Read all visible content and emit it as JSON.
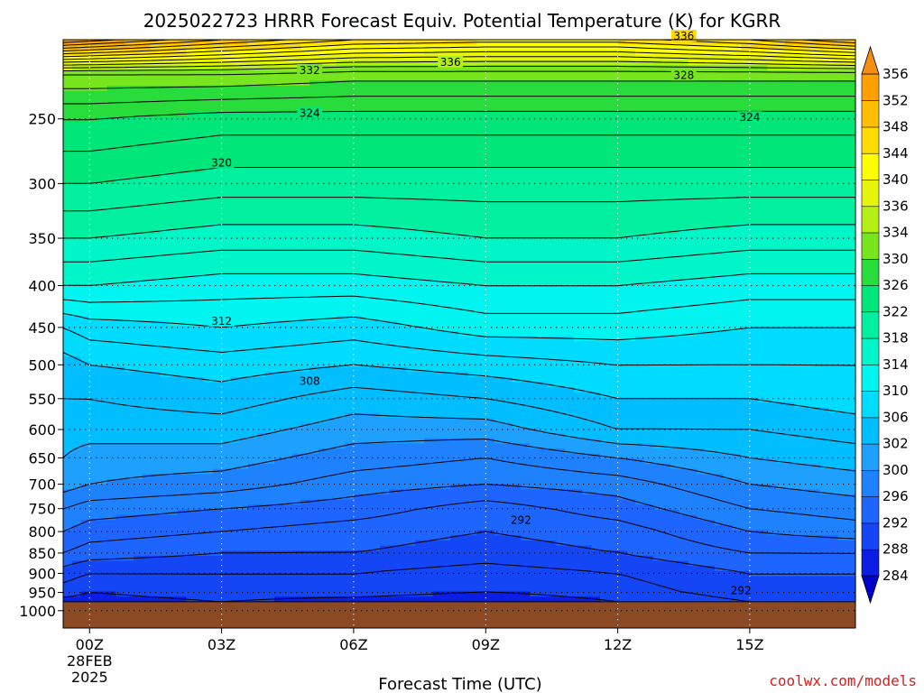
{
  "title": "2025022723 HRRR Forecast Equiv. Potential Temperature (K) for KGRR",
  "xlabel": "Forecast Time (UTC)",
  "credit": "coolwx.com/models",
  "colors": {
    "ground": "#8b4a24",
    "levels": [
      {
        "min": 282,
        "max": 284,
        "color": "#0000c8"
      },
      {
        "min": 284,
        "max": 288,
        "color": "#0a1ee6"
      },
      {
        "min": 288,
        "max": 292,
        "color": "#1446f5"
      },
      {
        "min": 292,
        "max": 296,
        "color": "#1e64ff"
      },
      {
        "min": 296,
        "max": 300,
        "color": "#1e82ff"
      },
      {
        "min": 300,
        "max": 302,
        "color": "#1ea0ff"
      },
      {
        "min": 302,
        "max": 306,
        "color": "#00beff"
      },
      {
        "min": 306,
        "max": 310,
        "color": "#00dcff"
      },
      {
        "min": 310,
        "max": 314,
        "color": "#00f5f0"
      },
      {
        "min": 314,
        "max": 318,
        "color": "#00f5c8"
      },
      {
        "min": 318,
        "max": 322,
        "color": "#00f0a0"
      },
      {
        "min": 322,
        "max": 326,
        "color": "#00e678"
      },
      {
        "min": 326,
        "max": 330,
        "color": "#28dc3c"
      },
      {
        "min": 330,
        "max": 334,
        "color": "#78e61e"
      },
      {
        "min": 334,
        "max": 336,
        "color": "#b4f014"
      },
      {
        "min": 336,
        "max": 340,
        "color": "#e6f50a"
      },
      {
        "min": 340,
        "max": 344,
        "color": "#ffff00"
      },
      {
        "min": 344,
        "max": 348,
        "color": "#ffdc00"
      },
      {
        "min": 348,
        "max": 352,
        "color": "#ffbe00"
      },
      {
        "min": 352,
        "max": 356,
        "color": "#ffa000"
      },
      {
        "min": 356,
        "max": 360,
        "color": "#f58c14"
      }
    ]
  },
  "chart_data": {
    "type": "heatmap",
    "title": "2025022723 HRRR Forecast Equiv. Potential Temperature (K) for KGRR",
    "xlabel": "Forecast Time (UTC)",
    "ylabel": "",
    "y_scale": "log",
    "ylim": [
      1000,
      200
    ],
    "y_ticks": [
      250,
      300,
      350,
      400,
      450,
      500,
      550,
      600,
      650,
      700,
      750,
      800,
      850,
      900,
      950,
      1000
    ],
    "x_ticks": [
      {
        "hour": 0,
        "label": "00Z",
        "sublabels": [
          "28FEB",
          "2025"
        ]
      },
      {
        "hour": 3,
        "label": "03Z",
        "sublabels": []
      },
      {
        "hour": 6,
        "label": "06Z",
        "sublabels": []
      },
      {
        "hour": 9,
        "label": "09Z",
        "sublabels": []
      },
      {
        "hour": 12,
        "label": "12Z",
        "sublabels": []
      },
      {
        "hour": 15,
        "label": "15Z",
        "sublabels": []
      }
    ],
    "xlim": [
      -0.6,
      17.4
    ],
    "colorbar_ticks": [
      356,
      352,
      348,
      344,
      340,
      336,
      334,
      330,
      326,
      322,
      318,
      314,
      310,
      306,
      302,
      300,
      296,
      292,
      288,
      284
    ],
    "surface_pressure_hpa": 975,
    "contour_interval_k": 2,
    "profiles": [
      {
        "hour": -0.6,
        "levels": [
          [
            975,
            287
          ],
          [
            950,
            289
          ],
          [
            900,
            291
          ],
          [
            850,
            294
          ],
          [
            800,
            296
          ],
          [
            750,
            298
          ],
          [
            700,
            301
          ],
          [
            650,
            302
          ],
          [
            600,
            303
          ],
          [
            550,
            304
          ],
          [
            500,
            305
          ],
          [
            450,
            308
          ],
          [
            400,
            314
          ],
          [
            350,
            318
          ],
          [
            300,
            322
          ],
          [
            250,
            326
          ],
          [
            220,
            332
          ],
          [
            200,
            356
          ]
        ]
      },
      {
        "hour": 0,
        "levels": [
          [
            975,
            287
          ],
          [
            950,
            288
          ],
          [
            900,
            290
          ],
          [
            850,
            293
          ],
          [
            800,
            295
          ],
          [
            750,
            297
          ],
          [
            700,
            300
          ],
          [
            650,
            301
          ],
          [
            600,
            303
          ],
          [
            550,
            304
          ],
          [
            500,
            306
          ],
          [
            450,
            309
          ],
          [
            400,
            314
          ],
          [
            350,
            318
          ],
          [
            300,
            322
          ],
          [
            250,
            326
          ],
          [
            220,
            332
          ],
          [
            200,
            355
          ]
        ]
      },
      {
        "hour": 3,
        "levels": [
          [
            975,
            288
          ],
          [
            950,
            289
          ],
          [
            900,
            290
          ],
          [
            850,
            292
          ],
          [
            800,
            294
          ],
          [
            750,
            296
          ],
          [
            700,
            299
          ],
          [
            650,
            301
          ],
          [
            600,
            303
          ],
          [
            550,
            305
          ],
          [
            500,
            307
          ],
          [
            450,
            310
          ],
          [
            400,
            313
          ],
          [
            350,
            317
          ],
          [
            300,
            321
          ],
          [
            250,
            325
          ],
          [
            220,
            332
          ],
          [
            200,
            350
          ]
        ]
      },
      {
        "hour": 6,
        "levels": [
          [
            975,
            287
          ],
          [
            950,
            289
          ],
          [
            900,
            290
          ],
          [
            850,
            292
          ],
          [
            800,
            293
          ],
          [
            750,
            295
          ],
          [
            700,
            297
          ],
          [
            650,
            299
          ],
          [
            600,
            301
          ],
          [
            550,
            303
          ],
          [
            500,
            306
          ],
          [
            450,
            309
          ],
          [
            400,
            313
          ],
          [
            350,
            317
          ],
          [
            300,
            321
          ],
          [
            250,
            325
          ],
          [
            220,
            331
          ],
          [
            200,
            346
          ]
        ]
      },
      {
        "hour": 9,
        "levels": [
          [
            975,
            286
          ],
          [
            950,
            288
          ],
          [
            900,
            289
          ],
          [
            850,
            291
          ],
          [
            800,
            292
          ],
          [
            750,
            293
          ],
          [
            700,
            296
          ],
          [
            650,
            298
          ],
          [
            600,
            301
          ],
          [
            550,
            304
          ],
          [
            500,
            307
          ],
          [
            450,
            311
          ],
          [
            400,
            314
          ],
          [
            350,
            318
          ],
          [
            300,
            321
          ],
          [
            250,
            325
          ],
          [
            220,
            331
          ],
          [
            200,
            345
          ]
        ]
      },
      {
        "hour": 12,
        "levels": [
          [
            975,
            288
          ],
          [
            950,
            289
          ],
          [
            900,
            290
          ],
          [
            850,
            292
          ],
          [
            800,
            293
          ],
          [
            750,
            295
          ],
          [
            700,
            297
          ],
          [
            650,
            300
          ],
          [
            600,
            304
          ],
          [
            550,
            306
          ],
          [
            500,
            308
          ],
          [
            450,
            311
          ],
          [
            400,
            314
          ],
          [
            350,
            318
          ],
          [
            300,
            321
          ],
          [
            250,
            325
          ],
          [
            220,
            331
          ],
          [
            200,
            345
          ]
        ]
      },
      {
        "hour": 15,
        "levels": [
          [
            975,
            290
          ],
          [
            950,
            291
          ],
          [
            900,
            292
          ],
          [
            850,
            294
          ],
          [
            800,
            296
          ],
          [
            750,
            298
          ],
          [
            700,
            300
          ],
          [
            650,
            302
          ],
          [
            600,
            304
          ],
          [
            550,
            306
          ],
          [
            500,
            308
          ],
          [
            450,
            310
          ],
          [
            400,
            313
          ],
          [
            350,
            317
          ],
          [
            300,
            321
          ],
          [
            250,
            325
          ],
          [
            220,
            331
          ],
          [
            200,
            348
          ]
        ]
      },
      {
        "hour": 17.4,
        "levels": [
          [
            975,
            290
          ],
          [
            950,
            291
          ],
          [
            900,
            292
          ],
          [
            850,
            294
          ],
          [
            800,
            297
          ],
          [
            750,
            299
          ],
          [
            700,
            301
          ],
          [
            650,
            303
          ],
          [
            600,
            305
          ],
          [
            550,
            307
          ],
          [
            500,
            308
          ],
          [
            450,
            310
          ],
          [
            400,
            313
          ],
          [
            350,
            317
          ],
          [
            300,
            321
          ],
          [
            250,
            325
          ],
          [
            220,
            331
          ],
          [
            200,
            352
          ]
        ]
      }
    ],
    "contour_labels": [
      {
        "hour": 8.2,
        "p": 213,
        "text": "336"
      },
      {
        "hour": 13.5,
        "p": 198,
        "text": "336"
      },
      {
        "hour": 5.0,
        "p": 218,
        "text": "332"
      },
      {
        "hour": 13.5,
        "p": 221,
        "text": "328"
      },
      {
        "hour": 5.0,
        "p": 246,
        "text": "324"
      },
      {
        "hour": 15.0,
        "p": 249,
        "text": "324"
      },
      {
        "hour": 3.0,
        "p": 283,
        "text": "320"
      },
      {
        "hour": 3.0,
        "p": 442,
        "text": "312"
      },
      {
        "hour": 5.0,
        "p": 524,
        "text": "308"
      },
      {
        "hour": 9.8,
        "p": 775,
        "text": "292"
      },
      {
        "hour": 14.8,
        "p": 945,
        "text": "292"
      }
    ]
  }
}
